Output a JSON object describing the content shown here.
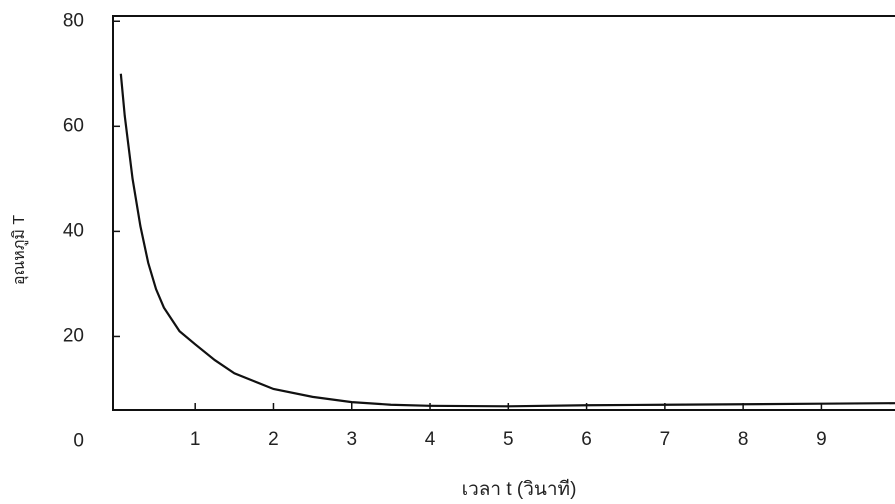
{
  "chart_data": {
    "type": "line",
    "x_label": "เวลา t (วินาที)",
    "y_label": "อุณหภูมิ T",
    "xlim": [
      -0.05,
      9.94
    ],
    "ylim": [
      6,
      81
    ],
    "xticks": [
      1,
      2,
      3,
      4,
      5,
      6,
      7,
      8,
      9
    ],
    "yticks": [
      0,
      20,
      40,
      60,
      80
    ],
    "grid": false,
    "series": [
      {
        "color": "#111111",
        "x": [
          0.05,
          0.1,
          0.2,
          0.3,
          0.4,
          0.5,
          0.6,
          0.8,
          1,
          1.25,
          1.5,
          1.75,
          2,
          2.5,
          3,
          3.5,
          4,
          5,
          6,
          7,
          8,
          9,
          9.94
        ],
        "values": [
          70,
          62,
          50,
          41,
          34,
          29,
          25.5,
          21,
          18.5,
          15.5,
          13,
          11.5,
          10,
          8.5,
          7.5,
          7,
          6.8,
          6.7,
          6.9,
          7,
          7.1,
          7.2,
          7.3
        ]
      }
    ]
  }
}
